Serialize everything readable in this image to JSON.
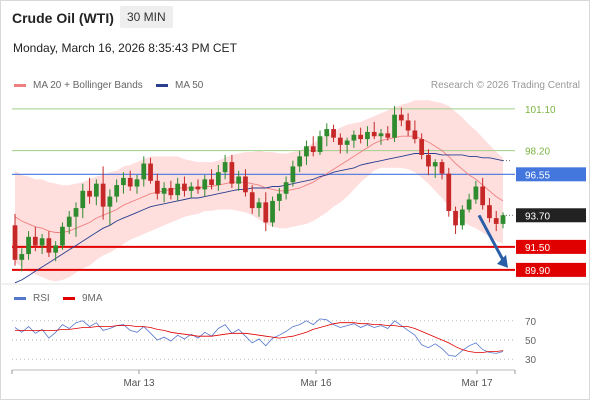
{
  "header": {
    "instrument": "Crude Oil (WTI)",
    "interval": "30 MIN",
    "datetime": "Monday, March 16, 2026 8:35:43 PM CET"
  },
  "legend": {
    "ma20": "MA 20 + Bollinger Bands",
    "ma50": "MA 50",
    "credit": "Research © 2026 Trading Central",
    "rsi": "RSI",
    "rsi_ma": "9MA"
  },
  "colors": {
    "bull": "#2e8b2e",
    "bear": "#c62828",
    "band_fill": "#ffdede",
    "ma20": "#f08080",
    "ma50": "#2a3f8f",
    "support": "#e00000",
    "pivot": "#4477dd",
    "resistance": "#9fd18a",
    "arrow": "#2a5ea8",
    "rsi": "#5577cc",
    "rsi_ma": "#e00000"
  },
  "chart_data": [
    {
      "type": "candlestick",
      "ylim": [
        88.5,
        102.0
      ],
      "x_ticks": [
        "Mar 13",
        "Mar 16",
        "Mar 17"
      ],
      "levels": [
        {
          "name": "resistance-2",
          "value": 101.1,
          "label": "101.10",
          "kind": "resistance"
        },
        {
          "name": "resistance-1",
          "value": 98.2,
          "label": "98.20",
          "kind": "resistance"
        },
        {
          "name": "pivot",
          "value": 96.55,
          "label": "96.55",
          "kind": "pivot"
        },
        {
          "name": "support-1",
          "value": 91.5,
          "label": "91.50",
          "kind": "support"
        },
        {
          "name": "support-2",
          "value": 89.9,
          "label": "89.90",
          "kind": "support"
        }
      ],
      "last_price": {
        "value": 93.7,
        "label": "93.70"
      },
      "ohlc": [
        [
          93.0,
          93.8,
          90.2,
          90.6
        ],
        [
          90.6,
          91.4,
          89.8,
          91.0
        ],
        [
          91.0,
          92.6,
          90.6,
          92.2
        ],
        [
          92.2,
          92.9,
          91.2,
          91.6
        ],
        [
          91.6,
          92.4,
          91.0,
          92.1
        ],
        [
          92.1,
          92.6,
          90.8,
          91.1
        ],
        [
          91.1,
          91.9,
          90.5,
          91.6
        ],
        [
          91.6,
          93.2,
          91.3,
          92.9
        ],
        [
          92.9,
          94.0,
          92.4,
          93.6
        ],
        [
          93.6,
          94.6,
          92.2,
          94.2
        ],
        [
          94.2,
          95.9,
          93.5,
          95.4
        ],
        [
          95.4,
          96.3,
          94.5,
          95.0
        ],
        [
          95.0,
          96.2,
          94.4,
          95.9
        ],
        [
          95.9,
          97.1,
          93.4,
          94.3
        ],
        [
          94.3,
          95.5,
          93.0,
          95.0
        ],
        [
          95.0,
          96.2,
          94.6,
          95.8
        ],
        [
          95.8,
          96.7,
          95.2,
          96.3
        ],
        [
          96.3,
          96.8,
          95.4,
          95.7
        ],
        [
          95.7,
          96.5,
          95.2,
          96.2
        ],
        [
          96.2,
          97.8,
          95.7,
          97.3
        ],
        [
          97.3,
          97.7,
          95.9,
          96.1
        ],
        [
          96.1,
          96.6,
          94.8,
          95.2
        ],
        [
          95.2,
          96.0,
          94.6,
          95.6
        ],
        [
          95.6,
          96.1,
          94.8,
          95.1
        ],
        [
          95.1,
          96.3,
          94.7,
          95.9
        ],
        [
          95.9,
          96.4,
          95.0,
          95.4
        ],
        [
          95.4,
          96.0,
          94.9,
          95.7
        ],
        [
          95.7,
          96.2,
          95.2,
          95.5
        ],
        [
          95.5,
          96.5,
          95.0,
          96.2
        ],
        [
          96.2,
          96.9,
          95.5,
          95.8
        ],
        [
          95.8,
          97.2,
          95.4,
          96.7
        ],
        [
          96.7,
          97.9,
          96.2,
          97.4
        ],
        [
          97.4,
          97.9,
          95.6,
          95.9
        ],
        [
          95.9,
          96.8,
          95.4,
          96.4
        ],
        [
          96.4,
          96.9,
          95.0,
          95.3
        ],
        [
          95.3,
          95.8,
          93.8,
          94.2
        ],
        [
          94.2,
          94.9,
          93.6,
          94.6
        ],
        [
          94.6,
          95.3,
          92.6,
          93.2
        ],
        [
          93.2,
          95.0,
          92.9,
          94.7
        ],
        [
          94.7,
          95.6,
          94.0,
          95.2
        ],
        [
          95.2,
          96.4,
          94.8,
          96.0
        ],
        [
          96.0,
          97.5,
          95.7,
          97.1
        ],
        [
          97.1,
          98.2,
          96.7,
          97.8
        ],
        [
          97.8,
          98.9,
          97.2,
          98.5
        ],
        [
          98.5,
          99.2,
          97.8,
          98.1
        ],
        [
          98.1,
          99.6,
          97.9,
          99.2
        ],
        [
          99.2,
          100.1,
          98.5,
          99.7
        ],
        [
          99.7,
          100.0,
          98.8,
          99.1
        ],
        [
          99.1,
          99.4,
          98.0,
          98.6
        ],
        [
          98.6,
          99.1,
          98.0,
          98.9
        ],
        [
          98.9,
          99.6,
          98.4,
          99.3
        ],
        [
          99.3,
          99.8,
          98.7,
          99.0
        ],
        [
          99.0,
          99.9,
          98.5,
          99.5
        ],
        [
          99.5,
          100.2,
          99.0,
          99.2
        ],
        [
          99.2,
          99.7,
          98.6,
          99.4
        ],
        [
          99.4,
          99.9,
          98.9,
          99.1
        ],
        [
          99.1,
          101.3,
          98.8,
          100.7
        ],
        [
          100.7,
          101.2,
          99.9,
          100.3
        ],
        [
          100.3,
          100.8,
          99.2,
          99.6
        ],
        [
          99.6,
          100.3,
          98.7,
          99.0
        ],
        [
          99.0,
          99.4,
          97.6,
          97.9
        ],
        [
          97.9,
          98.3,
          96.5,
          97.1
        ],
        [
          97.1,
          97.6,
          96.3,
          97.4
        ],
        [
          97.4,
          97.6,
          96.2,
          96.6
        ],
        [
          96.6,
          97.0,
          93.6,
          94.0
        ],
        [
          94.0,
          94.3,
          92.4,
          93.0
        ],
        [
          93.0,
          94.4,
          92.7,
          94.1
        ],
        [
          94.1,
          95.2,
          93.9,
          94.8
        ],
        [
          94.8,
          96.1,
          94.5,
          95.7
        ],
        [
          95.7,
          96.3,
          94.1,
          94.4
        ],
        [
          94.4,
          94.9,
          93.2,
          93.5
        ],
        [
          93.5,
          94.0,
          92.6,
          93.1
        ],
        [
          93.1,
          93.9,
          92.8,
          93.7
        ]
      ],
      "ma20": [
        93.6,
        93.3,
        93.1,
        92.9,
        92.8,
        92.6,
        92.5,
        92.5,
        92.6,
        92.8,
        93.0,
        93.2,
        93.5,
        93.7,
        93.9,
        94.1,
        94.4,
        94.6,
        94.8,
        95.0,
        95.2,
        95.3,
        95.4,
        95.5,
        95.6,
        95.6,
        95.6,
        95.6,
        95.7,
        95.7,
        95.8,
        95.9,
        96.0,
        96.0,
        96.0,
        95.9,
        95.8,
        95.6,
        95.5,
        95.4,
        95.4,
        95.5,
        95.6,
        95.8,
        96.0,
        96.3,
        96.6,
        96.9,
        97.2,
        97.5,
        97.8,
        98.1,
        98.4,
        98.7,
        98.9,
        99.0,
        99.1,
        99.2,
        99.2,
        99.2,
        99.0,
        98.8,
        98.5,
        98.2,
        97.8,
        97.3,
        96.9,
        96.5,
        96.2,
        95.8,
        95.4,
        95.0,
        94.7
      ],
      "band_width": [
        3.2,
        3.2,
        3.3,
        3.3,
        3.4,
        3.4,
        3.4,
        3.3,
        3.2,
        3.1,
        3.0,
        3.0,
        2.9,
        2.8,
        2.8,
        2.7,
        2.7,
        2.6,
        2.6,
        2.6,
        2.6,
        2.5,
        2.4,
        2.3,
        2.2,
        2.0,
        1.9,
        1.8,
        1.7,
        1.7,
        1.7,
        1.8,
        1.9,
        2.0,
        2.1,
        2.2,
        2.4,
        2.5,
        2.6,
        2.6,
        2.6,
        2.6,
        2.6,
        2.7,
        2.7,
        2.7,
        2.7,
        2.6,
        2.6,
        2.5,
        2.3,
        2.1,
        2.0,
        1.9,
        1.9,
        2.0,
        2.1,
        2.2,
        2.3,
        2.5,
        2.7,
        2.9,
        3.1,
        3.3,
        3.5,
        3.6,
        3.6,
        3.5,
        3.4,
        3.3,
        3.2,
        3.1,
        3.0
      ],
      "ma50": [
        89.0,
        89.2,
        89.5,
        89.8,
        90.1,
        90.4,
        90.7,
        91.0,
        91.3,
        91.6,
        91.9,
        92.2,
        92.5,
        92.8,
        93.0,
        93.3,
        93.5,
        93.7,
        93.9,
        94.1,
        94.3,
        94.4,
        94.5,
        94.6,
        94.7,
        94.8,
        94.9,
        94.9,
        95.0,
        95.1,
        95.2,
        95.3,
        95.4,
        95.5,
        95.5,
        95.6,
        95.6,
        95.6,
        95.7,
        95.7,
        95.8,
        95.9,
        96.0,
        96.1,
        96.2,
        96.4,
        96.5,
        96.7,
        96.8,
        96.9,
        97.0,
        97.2,
        97.3,
        97.4,
        97.5,
        97.6,
        97.7,
        97.8,
        97.9,
        98.0,
        98.0,
        98.0,
        98.0,
        97.9,
        97.9,
        97.9,
        97.9,
        97.8,
        97.8,
        97.7,
        97.7,
        97.6,
        97.5
      ]
    },
    {
      "type": "line",
      "ylim": [
        25,
        75
      ],
      "y_ticks": [
        {
          "value": 70,
          "label": "70"
        },
        {
          "value": 50,
          "label": "50"
        },
        {
          "value": 30,
          "label": "30"
        }
      ],
      "series": [
        {
          "name": "RSI",
          "values": [
            63,
            58,
            64,
            57,
            61,
            52,
            58,
            66,
            62,
            68,
            70,
            64,
            68,
            60,
            62,
            65,
            66,
            60,
            58,
            64,
            57,
            50,
            53,
            49,
            55,
            51,
            56,
            52,
            58,
            54,
            62,
            66,
            57,
            61,
            54,
            47,
            51,
            44,
            52,
            55,
            59,
            64,
            66,
            70,
            66,
            72,
            71,
            66,
            63,
            65,
            67,
            63,
            66,
            63,
            65,
            62,
            70,
            65,
            60,
            55,
            45,
            42,
            46,
            41,
            34,
            33,
            39,
            44,
            47,
            40,
            37,
            36,
            38
          ]
        },
        {
          "name": "9MA",
          "values": [
            60,
            60,
            60,
            60,
            60,
            60,
            60,
            61,
            61,
            62,
            63,
            63,
            64,
            64,
            64,
            65,
            65,
            65,
            64,
            64,
            63,
            61,
            60,
            58,
            57,
            56,
            55,
            54,
            54,
            54,
            55,
            56,
            57,
            57,
            57,
            56,
            55,
            54,
            53,
            52,
            53,
            54,
            56,
            58,
            61,
            63,
            65,
            67,
            68,
            68,
            68,
            67,
            67,
            66,
            66,
            65,
            65,
            64,
            64,
            62,
            59,
            56,
            53,
            50,
            47,
            43,
            40,
            38,
            37,
            37,
            38,
            38,
            39
          ]
        }
      ]
    }
  ]
}
